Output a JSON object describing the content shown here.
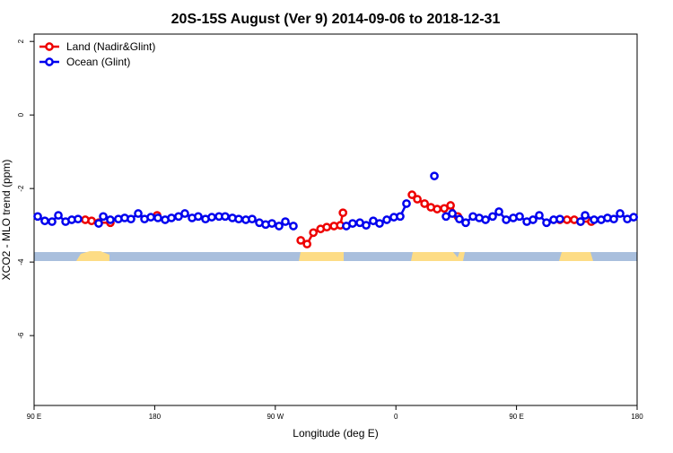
{
  "chart_data": {
    "type": "line",
    "title": "20S-15S August (Ver 9)   2014-09-06 to 2018-12-31",
    "x_label": "Longitude (deg E)",
    "y_label": "XCO2 - MLO trend (ppm)",
    "xlim": [
      90,
      540
    ],
    "xticks": [
      {
        "value": 90,
        "label": "90 E"
      },
      {
        "value": 180,
        "label": "180"
      },
      {
        "value": 270,
        "label": "90 W"
      },
      {
        "value": 360,
        "label": "0"
      },
      {
        "value": 450,
        "label": "90 E"
      },
      {
        "value": 540,
        "label": "180"
      }
    ],
    "ylim": [
      -7.9,
      2.2
    ],
    "yticks": [
      -6,
      -4,
      -2,
      0,
      2
    ],
    "legend": "topleft",
    "series": [
      {
        "name": "Land (Nadir&Glint)",
        "color": "#ee0000",
        "x": [
          128.2,
          132.9,
          138.2,
          146.9,
          160,
          181.8,
          250,
          289.0,
          293.7,
          298.4,
          303.8,
          308.4,
          313.8,
          318.5,
          320.5,
          340,
          372.0,
          376.0,
          381.4,
          386.1,
          390.8,
          396.1,
          400.8,
          406.2,
          450,
          482.4,
          487.7,
          493.1,
          497.8,
          505.8
        ],
        "values": [
          -2.85,
          -2.88,
          -2.93,
          -2.93,
          null,
          -2.73,
          null,
          -3.41,
          -3.51,
          -3.2,
          -3.1,
          -3.05,
          -3.02,
          -3.0,
          -2.66,
          null,
          -2.17,
          -2.29,
          -2.41,
          -2.51,
          -2.56,
          -2.54,
          -2.46,
          -2.76,
          null,
          -2.85,
          -2.85,
          -2.85,
          -2.9,
          -2.9
        ]
      },
      {
        "name": "Ocean (Glint)",
        "color": "#0000ee",
        "x": [
          92.7,
          98.0,
          103.4,
          108.1,
          113.5,
          118.1,
          122.8,
          130,
          138.2,
          141.6,
          146.9,
          152.9,
          157.6,
          162.3,
          167.7,
          172.4,
          177.1,
          182.4,
          187.8,
          192.5,
          197.8,
          202.5,
          207.9,
          212.5,
          217.9,
          222.6,
          228.0,
          232.6,
          238.0,
          242.7,
          248.0,
          252.7,
          258.1,
          262.8,
          267.5,
          272.8,
          277.5,
          283.5,
          300,
          323.0,
          327.7,
          333.1,
          337.8,
          343.1,
          347.8,
          353.2,
          358.5,
          363.2,
          367.9,
          378,
          388.7,
          393,
          397.4,
          402.1,
          407.4,
          412.1,
          417.5,
          422.2,
          426.9,
          432.2,
          436.9,
          442.3,
          447.6,
          452.3,
          457.7,
          462.3,
          467.0,
          472.4,
          477.7,
          482.4,
          490,
          497.8,
          501.2,
          507.9,
          513.2,
          517.9,
          522.6,
          527.3,
          532.7,
          537.4
        ],
        "values": [
          -2.76,
          -2.88,
          -2.9,
          -2.73,
          -2.9,
          -2.85,
          -2.83,
          null,
          -2.95,
          -2.76,
          -2.85,
          -2.83,
          -2.8,
          -2.83,
          -2.68,
          -2.83,
          -2.78,
          -2.8,
          -2.85,
          -2.8,
          -2.76,
          -2.68,
          -2.8,
          -2.76,
          -2.83,
          -2.78,
          -2.76,
          -2.76,
          -2.8,
          -2.83,
          -2.85,
          -2.83,
          -2.93,
          -2.98,
          -2.95,
          -3.02,
          -2.9,
          -3.02,
          null,
          -3.02,
          -2.95,
          -2.93,
          -3.0,
          -2.88,
          -2.95,
          -2.85,
          -2.78,
          -2.76,
          -2.41,
          null,
          -1.66,
          null,
          -2.76,
          -2.68,
          -2.83,
          -2.93,
          -2.76,
          -2.8,
          -2.85,
          -2.76,
          -2.63,
          -2.85,
          -2.8,
          -2.76,
          -2.9,
          -2.85,
          -2.73,
          -2.93,
          -2.85,
          -2.83,
          null,
          -2.9,
          -2.73,
          -2.85,
          -2.85,
          -2.8,
          -2.83,
          -2.68,
          -2.83,
          -2.78
        ]
      }
    ]
  }
}
